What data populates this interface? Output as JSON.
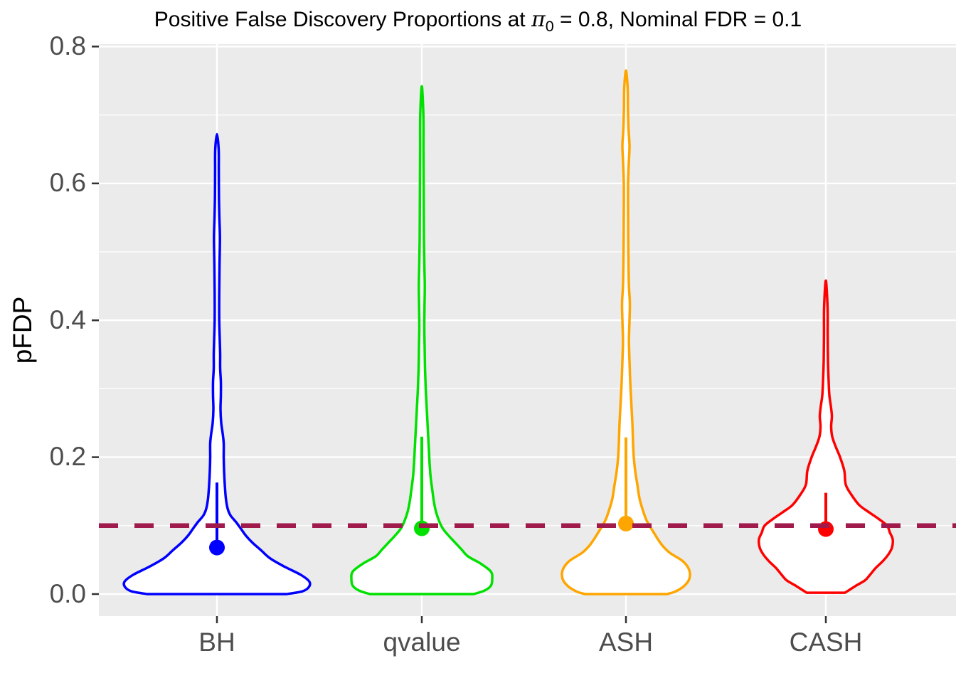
{
  "title": {
    "pre": "Positive False Discovery Proportions at ",
    "pi_symbol": "π",
    "pi_subscript": "0",
    "post": " = 0.8, Nominal FDR = 0.1"
  },
  "y_axis": {
    "label": "pFDP",
    "tick_labels": [
      "0.0",
      "0.2",
      "0.4",
      "0.6",
      "0.8"
    ],
    "tick_values": [
      0.0,
      0.2,
      0.4,
      0.6,
      0.8
    ],
    "minor_values": [
      0.1,
      0.3,
      0.5,
      0.7
    ],
    "limits": [
      0.0,
      0.8
    ]
  },
  "x_axis": {
    "categories": [
      "BH",
      "qvalue",
      "ASH",
      "CASH"
    ]
  },
  "reference_line": {
    "value": 0.1,
    "color": "#A01A4B",
    "style": "dashed"
  },
  "style_colors": {
    "panel_background": "#EBEBEB",
    "gridline": "#FFFFFF",
    "axis_text": "#4D4D4D",
    "tick_mark": "#333333",
    "violin_fill": "#FFFFFF"
  },
  "chart_data": {
    "type": "violin",
    "title": "Positive False Discovery Proportions at π0 = 0.8, Nominal FDR = 0.1",
    "xlabel": "",
    "ylabel": "pFDP",
    "ylim": [
      0,
      0.8
    ],
    "grid": true,
    "pi0": 0.8,
    "nominal_fdr": 0.1,
    "categories": [
      "BH",
      "qvalue",
      "ASH",
      "CASH"
    ],
    "series": [
      {
        "name": "BH",
        "color": "#0000FF",
        "summary_dot": 0.068,
        "summary_line_top": 0.163,
        "min": 0.0,
        "max": 0.672,
        "profile": [
          [
            0.0,
            98
          ],
          [
            0.004,
            120
          ],
          [
            0.01,
            129
          ],
          [
            0.018,
            130
          ],
          [
            0.028,
            118
          ],
          [
            0.04,
            95
          ],
          [
            0.052,
            75
          ],
          [
            0.064,
            62
          ],
          [
            0.075,
            50
          ],
          [
            0.085,
            41
          ],
          [
            0.095,
            34
          ],
          [
            0.105,
            27
          ],
          [
            0.115,
            19
          ],
          [
            0.125,
            15
          ],
          [
            0.14,
            12.5
          ],
          [
            0.16,
            11
          ],
          [
            0.18,
            10
          ],
          [
            0.2,
            9.5
          ],
          [
            0.22,
            9.5
          ],
          [
            0.235,
            8
          ],
          [
            0.25,
            6
          ],
          [
            0.27,
            5
          ],
          [
            0.29,
            5.5
          ],
          [
            0.31,
            5.5
          ],
          [
            0.33,
            4.5
          ],
          [
            0.35,
            4.5
          ],
          [
            0.37,
            4
          ],
          [
            0.4,
            3.2
          ],
          [
            0.44,
            3.2
          ],
          [
            0.48,
            3.6
          ],
          [
            0.52,
            4.2
          ],
          [
            0.55,
            3.4
          ],
          [
            0.58,
            2.8
          ],
          [
            0.62,
            2.6
          ],
          [
            0.65,
            2.4
          ],
          [
            0.672,
            0
          ]
        ]
      },
      {
        "name": "qvalue",
        "color": "#00E100",
        "summary_dot": 0.096,
        "summary_line_top": 0.23,
        "min": 0.0,
        "max": 0.742,
        "profile": [
          [
            0.0,
            73
          ],
          [
            0.005,
            88
          ],
          [
            0.012,
            97
          ],
          [
            0.022,
            99
          ],
          [
            0.033,
            97
          ],
          [
            0.045,
            82
          ],
          [
            0.055,
            65
          ],
          [
            0.065,
            56
          ],
          [
            0.075,
            47
          ],
          [
            0.085,
            38
          ],
          [
            0.095,
            30
          ],
          [
            0.105,
            25
          ],
          [
            0.12,
            20
          ],
          [
            0.135,
            17
          ],
          [
            0.15,
            15
          ],
          [
            0.17,
            12.5
          ],
          [
            0.19,
            11
          ],
          [
            0.21,
            10
          ],
          [
            0.23,
            9
          ],
          [
            0.25,
            8
          ],
          [
            0.27,
            7
          ],
          [
            0.3,
            5.5
          ],
          [
            0.33,
            4.5
          ],
          [
            0.36,
            4
          ],
          [
            0.39,
            3.5
          ],
          [
            0.42,
            3.8
          ],
          [
            0.45,
            4.2
          ],
          [
            0.48,
            3.6
          ],
          [
            0.52,
            3
          ],
          [
            0.56,
            2.8
          ],
          [
            0.6,
            2.6
          ],
          [
            0.65,
            2.4
          ],
          [
            0.7,
            2.2
          ],
          [
            0.742,
            0
          ]
        ]
      },
      {
        "name": "ASH",
        "color": "#FFA500",
        "summary_dot": 0.103,
        "summary_line_top": 0.229,
        "min": 0.0,
        "max": 0.765,
        "profile": [
          [
            0.0,
            58
          ],
          [
            0.004,
            70
          ],
          [
            0.012,
            82
          ],
          [
            0.022,
            89
          ],
          [
            0.035,
            89
          ],
          [
            0.048,
            80
          ],
          [
            0.06,
            62
          ],
          [
            0.07,
            52
          ],
          [
            0.08,
            45
          ],
          [
            0.09,
            39
          ],
          [
            0.1,
            33
          ],
          [
            0.11,
            28
          ],
          [
            0.125,
            23
          ],
          [
            0.14,
            19
          ],
          [
            0.16,
            16
          ],
          [
            0.18,
            13
          ],
          [
            0.2,
            11
          ],
          [
            0.22,
            10
          ],
          [
            0.25,
            9
          ],
          [
            0.28,
            7.5
          ],
          [
            0.31,
            6
          ],
          [
            0.34,
            5
          ],
          [
            0.37,
            4.2
          ],
          [
            0.4,
            5
          ],
          [
            0.425,
            5.5
          ],
          [
            0.45,
            4.2
          ],
          [
            0.48,
            3.6
          ],
          [
            0.52,
            3.2
          ],
          [
            0.56,
            3
          ],
          [
            0.6,
            3
          ],
          [
            0.63,
            4
          ],
          [
            0.655,
            5
          ],
          [
            0.68,
            3.6
          ],
          [
            0.71,
            2.8
          ],
          [
            0.74,
            2.4
          ],
          [
            0.765,
            0
          ]
        ]
      },
      {
        "name": "CASH",
        "color": "#FF0000",
        "summary_dot": 0.095,
        "summary_line_top": 0.148,
        "min": 0.002,
        "max": 0.458,
        "profile": [
          [
            0.002,
            27
          ],
          [
            0.006,
            33
          ],
          [
            0.012,
            42
          ],
          [
            0.02,
            55
          ],
          [
            0.028,
            62
          ],
          [
            0.038,
            70
          ],
          [
            0.048,
            80
          ],
          [
            0.058,
            88
          ],
          [
            0.068,
            93
          ],
          [
            0.08,
            94
          ],
          [
            0.09,
            90
          ],
          [
            0.1,
            86
          ],
          [
            0.11,
            74
          ],
          [
            0.12,
            60
          ],
          [
            0.13,
            47
          ],
          [
            0.145,
            36
          ],
          [
            0.16,
            28
          ],
          [
            0.18,
            26
          ],
          [
            0.2,
            20
          ],
          [
            0.215,
            14
          ],
          [
            0.23,
            9
          ],
          [
            0.245,
            7.5
          ],
          [
            0.26,
            8.5
          ],
          [
            0.275,
            7
          ],
          [
            0.29,
            5
          ],
          [
            0.31,
            4
          ],
          [
            0.34,
            3
          ],
          [
            0.38,
            2.6
          ],
          [
            0.42,
            2.4
          ],
          [
            0.458,
            0
          ]
        ]
      }
    ]
  }
}
